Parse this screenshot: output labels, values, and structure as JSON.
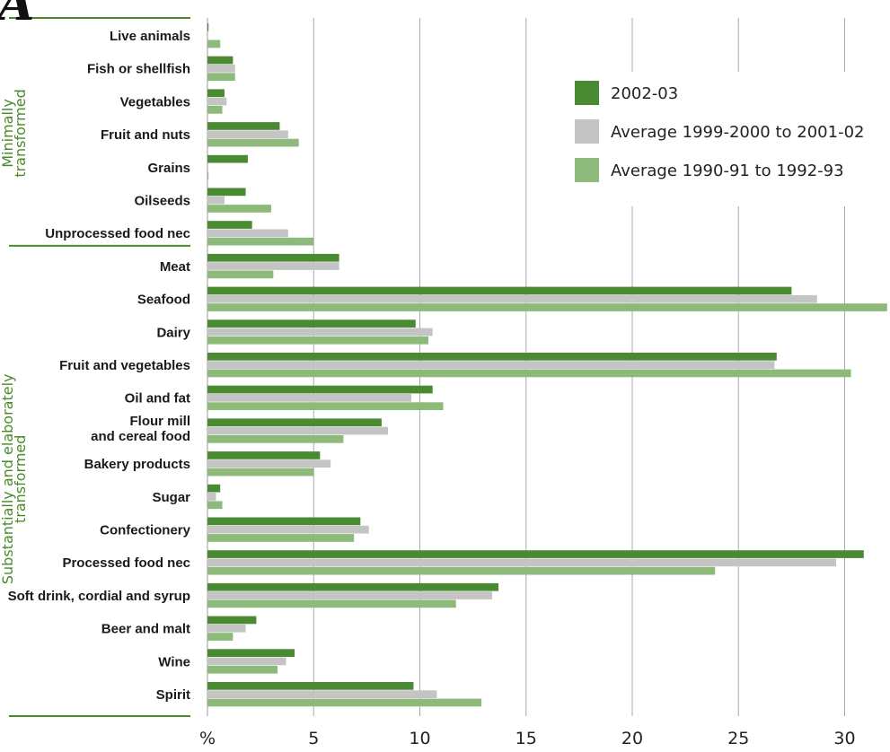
{
  "chart_data": {
    "type": "bar",
    "orientation": "horizontal",
    "corner_glyph": "A",
    "categories": [
      "Live animals",
      "Fish or shellfish",
      "Vegetables",
      "Fruit and nuts",
      "Grains",
      "Oilseeds",
      "Unprocessed food nec",
      "Meat",
      "Seafood",
      "Dairy",
      "Fruit and vegetables",
      "Oil and fat",
      "Flour mill\nand cereal food",
      "Bakery products",
      "Sugar",
      "Confectionery",
      "Processed food nec",
      "Soft drink, cordial and syrup",
      "Beer and malt",
      "Wine",
      "Spirit"
    ],
    "groups": [
      {
        "label": "Minimally\ntransformed",
        "from": 0,
        "to": 6
      },
      {
        "label": "Substantially and elaborately\ntransformed",
        "from": 7,
        "to": 20
      }
    ],
    "series": [
      {
        "name": "2002-03",
        "color": "#4a8a32",
        "values": [
          0.05,
          1.2,
          0.8,
          3.4,
          1.9,
          1.8,
          2.1,
          6.2,
          27.5,
          9.8,
          26.8,
          10.6,
          8.2,
          5.3,
          0.6,
          7.2,
          30.9,
          13.7,
          2.3,
          4.1,
          9.7
        ]
      },
      {
        "name": "Average 1999-2000 to 2001-02",
        "color": "#c4c4c4",
        "values": [
          0.0,
          1.3,
          0.9,
          3.8,
          0.0,
          0.8,
          3.8,
          6.2,
          28.7,
          10.6,
          26.7,
          9.6,
          8.5,
          5.8,
          0.4,
          7.6,
          29.6,
          13.4,
          1.8,
          3.7,
          10.8
        ]
      },
      {
        "name": "Average 1990-91 to 1992-93",
        "color": "#8db97a",
        "values": [
          0.6,
          1.3,
          0.7,
          4.3,
          0.05,
          3.0,
          5.0,
          3.1,
          32.0,
          10.4,
          30.3,
          11.1,
          6.4,
          5.0,
          0.7,
          6.9,
          23.9,
          11.7,
          1.2,
          3.3,
          12.9
        ]
      }
    ],
    "xlabel": "%",
    "xticks": [
      5,
      10,
      15,
      20,
      25,
      30
    ],
    "xlim": [
      0,
      32
    ],
    "grid": true,
    "legend_position": "top-right"
  }
}
